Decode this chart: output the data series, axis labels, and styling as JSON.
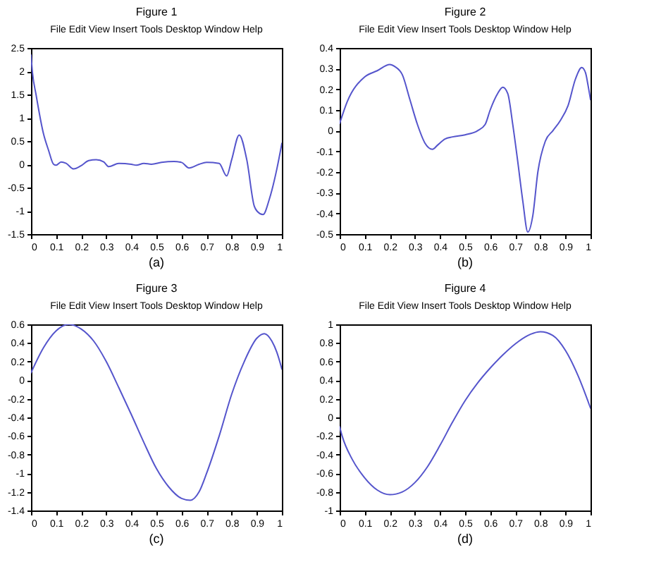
{
  "chart_data": [
    {
      "type": "line",
      "title": "Figure 1",
      "subtitle": "File Edit View Insert Tools Desktop Window Help",
      "annotations": [
        "(a)"
      ],
      "line_style": "solid",
      "xlim": [
        0,
        1
      ],
      "ylim": [
        -1.5,
        2.5
      ],
      "xticks": [
        0,
        0.1,
        0.2,
        0.3,
        0.4,
        0.5,
        0.6,
        0.7,
        0.8,
        0.9,
        1
      ],
      "yticks": [
        -1.5,
        -1,
        -0.5,
        0,
        0.5,
        1,
        1.5,
        2,
        2.5
      ],
      "x": [
        0,
        0.006,
        0.02,
        0.05,
        0.07,
        0.09,
        0.1,
        0.12,
        0.14,
        0.17,
        0.2,
        0.23,
        0.26,
        0.29,
        0.31,
        0.35,
        0.4,
        0.42,
        0.45,
        0.48,
        0.52,
        0.57,
        0.6,
        0.63,
        0.67,
        0.7,
        0.75,
        0.78,
        0.8,
        0.83,
        0.86,
        0.89,
        0.9,
        0.925,
        0.95,
        0.98,
        1
      ],
      "series": [
        {
          "color": "#5555cc",
          "values": [
            2.35,
            1.96,
            1.5,
            0.65,
            0.3,
            0.0,
            -0.02,
            0.05,
            0.02,
            -0.1,
            -0.03,
            0.08,
            0.1,
            0.05,
            -0.05,
            0.02,
            0.0,
            -0.02,
            0.02,
            0.0,
            0.04,
            0.06,
            0.04,
            -0.08,
            0.0,
            0.04,
            0.02,
            -0.25,
            0.1,
            0.63,
            0.1,
            -0.9,
            -1.0,
            -1.08,
            -0.75,
            -0.1,
            0.45
          ]
        }
      ]
    },
    {
      "type": "line",
      "title": "Figure 2",
      "subtitle": "File Edit View Insert Tools Desktop Window Help",
      "annotations": [
        "(b)"
      ],
      "line_style": "solid",
      "xlim": [
        0,
        1
      ],
      "ylim": [
        -0.5,
        0.4
      ],
      "xticks": [
        0,
        0.1,
        0.2,
        0.3,
        0.4,
        0.5,
        0.6,
        0.7,
        0.8,
        0.9,
        1
      ],
      "yticks": [
        -0.5,
        -0.4,
        -0.3,
        -0.2,
        -0.1,
        0,
        0.1,
        0.2,
        0.3,
        0.4
      ],
      "x": [
        0,
        0.03,
        0.1,
        0.15,
        0.2,
        0.22,
        0.25,
        0.28,
        0.31,
        0.34,
        0.37,
        0.39,
        0.42,
        0.45,
        0.5,
        0.55,
        0.58,
        0.6,
        0.63,
        0.65,
        0.67,
        0.69,
        0.71,
        0.73,
        0.75,
        0.77,
        0.79,
        0.82,
        0.85,
        0.88,
        0.91,
        0.94,
        0.965,
        0.98,
        0.99,
        1
      ],
      "series": [
        {
          "color": "#5555cc",
          "values": [
            0.035,
            0.14,
            0.26,
            0.29,
            0.32,
            0.31,
            0.27,
            0.15,
            0.03,
            -0.06,
            -0.09,
            -0.07,
            -0.04,
            -0.03,
            -0.02,
            0.0,
            0.03,
            0.1,
            0.18,
            0.21,
            0.18,
            0.03,
            -0.15,
            -0.34,
            -0.49,
            -0.41,
            -0.2,
            -0.05,
            0.0,
            0.05,
            0.12,
            0.25,
            0.305,
            0.28,
            0.22,
            0.15
          ]
        }
      ]
    },
    {
      "type": "line",
      "title": "Figure 3",
      "subtitle": "File Edit View Insert Tools Desktop Window Help",
      "annotations": [
        "(c)"
      ],
      "line_style": "solid",
      "xlim": [
        0,
        1
      ],
      "ylim": [
        -1.4,
        0.6
      ],
      "xticks": [
        0,
        0.1,
        0.2,
        0.3,
        0.4,
        0.5,
        0.6,
        0.7,
        0.8,
        0.9,
        1
      ],
      "yticks": [
        -1.4,
        -1.2,
        -1,
        -0.8,
        -0.6,
        -0.4,
        -0.2,
        0,
        0.2,
        0.4,
        0.6
      ],
      "x": [
        0,
        0.05,
        0.1,
        0.15,
        0.2,
        0.25,
        0.3,
        0.35,
        0.4,
        0.45,
        0.5,
        0.55,
        0.6,
        0.635,
        0.67,
        0.7,
        0.75,
        0.8,
        0.85,
        0.9,
        0.93,
        0.96,
        0.98,
        1
      ],
      "series": [
        {
          "color": "#5555cc",
          "values": [
            0.08,
            0.35,
            0.53,
            0.6,
            0.55,
            0.42,
            0.2,
            -0.08,
            -0.37,
            -0.67,
            -0.95,
            -1.15,
            -1.27,
            -1.29,
            -1.2,
            -1.0,
            -0.6,
            -0.15,
            0.2,
            0.45,
            0.5,
            0.42,
            0.3,
            0.12
          ]
        }
      ]
    },
    {
      "type": "line",
      "title": "Figure 4",
      "subtitle": "File Edit View Insert Tools Desktop Window Help",
      "annotations": [
        "(d)"
      ],
      "line_style": "solid",
      "xlim": [
        0,
        1
      ],
      "ylim": [
        -1,
        1
      ],
      "xticks": [
        0,
        0.1,
        0.2,
        0.3,
        0.4,
        0.5,
        0.6,
        0.7,
        0.8,
        0.9,
        1
      ],
      "yticks": [
        -1,
        -0.8,
        -0.6,
        -0.4,
        -0.2,
        0,
        0.2,
        0.4,
        0.6,
        0.8,
        1
      ],
      "x": [
        0,
        0.01,
        0.05,
        0.1,
        0.15,
        0.2,
        0.25,
        0.3,
        0.35,
        0.4,
        0.45,
        0.5,
        0.55,
        0.6,
        0.65,
        0.7,
        0.75,
        0.8,
        0.85,
        0.9,
        0.95,
        1
      ],
      "series": [
        {
          "color": "#5555cc",
          "values": [
            -0.1,
            -0.2,
            -0.45,
            -0.65,
            -0.78,
            -0.83,
            -0.8,
            -0.7,
            -0.53,
            -0.3,
            -0.05,
            0.18,
            0.37,
            0.53,
            0.67,
            0.79,
            0.88,
            0.92,
            0.88,
            0.72,
            0.45,
            0.1
          ]
        }
      ]
    }
  ]
}
